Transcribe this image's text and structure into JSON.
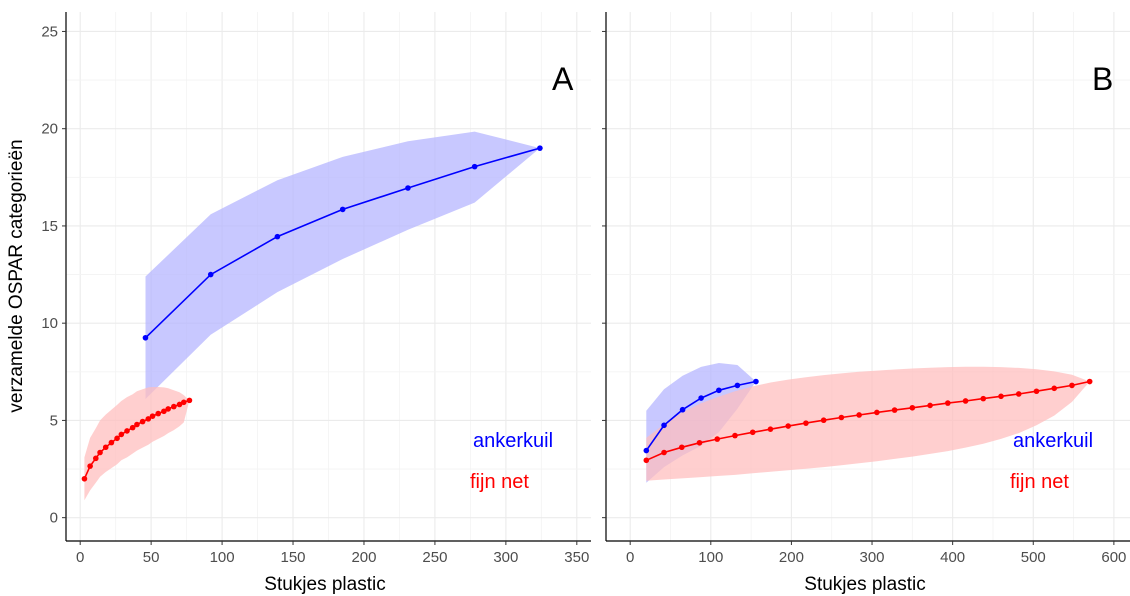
{
  "chart_data": [
    {
      "type": "line",
      "panel_label": "A",
      "xlabel": "Stukjes plastic",
      "ylabel": "verzamelde OSPAR categorieën",
      "xlim": [
        -10,
        360
      ],
      "ylim": [
        -1.2,
        26
      ],
      "x_ticks": [
        0,
        50,
        100,
        150,
        200,
        250,
        300,
        350
      ],
      "y_ticks": [
        0,
        5,
        10,
        15,
        20,
        25
      ],
      "grid": true,
      "legend_placement": "bottom-right",
      "series": [
        {
          "name": "ankerkuil",
          "color": "#0000ff",
          "band_color": "#b3b3ff",
          "x": [
            46,
            92,
            139,
            185,
            231,
            278,
            324
          ],
          "y": [
            9.25,
            12.5,
            14.45,
            15.85,
            16.95,
            18.05,
            19.0
          ],
          "lower": [
            6.1,
            9.4,
            11.6,
            13.3,
            14.8,
            16.2,
            19.0
          ],
          "upper": [
            12.4,
            15.6,
            17.35,
            18.55,
            19.35,
            19.85,
            19.0
          ]
        },
        {
          "name": "fijn net",
          "color": "#ff0000",
          "band_color": "#ffbdbd",
          "x": [
            3,
            7,
            11,
            14,
            18,
            22,
            26,
            29,
            33,
            37,
            40,
            44,
            48,
            51,
            55,
            59,
            62,
            66,
            70,
            73,
            77
          ],
          "y": [
            2.0,
            2.65,
            3.05,
            3.35,
            3.62,
            3.86,
            4.08,
            4.28,
            4.46,
            4.63,
            4.79,
            4.94,
            5.08,
            5.22,
            5.35,
            5.47,
            5.59,
            5.71,
            5.82,
            5.93,
            6.03
          ],
          "lower": [
            0.9,
            1.4,
            1.8,
            2.1,
            2.35,
            2.55,
            2.75,
            2.95,
            3.1,
            3.3,
            3.45,
            3.6,
            3.75,
            3.9,
            4.05,
            4.2,
            4.35,
            4.5,
            4.7,
            4.9,
            6.03
          ],
          "upper": [
            3.1,
            4.1,
            4.6,
            5.0,
            5.3,
            5.55,
            5.8,
            6.0,
            6.2,
            6.35,
            6.5,
            6.6,
            6.7,
            6.72,
            6.72,
            6.7,
            6.65,
            6.55,
            6.45,
            6.3,
            6.03
          ]
        }
      ]
    },
    {
      "type": "line",
      "panel_label": "B",
      "xlabel": "Stukjes plastic",
      "xlim": [
        -30,
        620
      ],
      "ylim": [
        -1.2,
        26
      ],
      "x_ticks": [
        0,
        100,
        200,
        300,
        400,
        500,
        600
      ],
      "y_ticks": [
        0,
        5,
        10,
        15,
        20,
        25
      ],
      "grid": true,
      "legend_placement": "bottom-right",
      "series": [
        {
          "name": "ankerkuil",
          "color": "#0000ff",
          "band_color": "#b3b3ff",
          "x": [
            20,
            42,
            65,
            88,
            110,
            133,
            156
          ],
          "y": [
            3.45,
            4.75,
            5.55,
            6.15,
            6.55,
            6.8,
            7.0
          ],
          "lower": [
            1.8,
            2.6,
            3.2,
            3.7,
            4.4,
            5.6,
            7.0
          ],
          "upper": [
            5.5,
            6.6,
            7.3,
            7.75,
            7.95,
            7.85,
            7.0
          ]
        },
        {
          "name": "fijn net",
          "color": "#ff0000",
          "band_color": "#ffbdbd",
          "x": [
            20,
            42,
            64,
            86,
            108,
            130,
            152,
            174,
            196,
            218,
            240,
            262,
            284,
            306,
            328,
            350,
            372,
            394,
            416,
            438,
            460,
            482,
            504,
            526,
            548,
            570
          ],
          "y": [
            2.95,
            3.35,
            3.62,
            3.85,
            4.04,
            4.22,
            4.39,
            4.55,
            4.71,
            4.86,
            5.01,
            5.15,
            5.28,
            5.41,
            5.53,
            5.65,
            5.77,
            5.89,
            6.0,
            6.12,
            6.24,
            6.36,
            6.5,
            6.65,
            6.8,
            7.0
          ],
          "lower": [
            1.9,
            1.96,
            2.02,
            2.08,
            2.14,
            2.2,
            2.28,
            2.36,
            2.44,
            2.52,
            2.6,
            2.7,
            2.8,
            2.9,
            3.02,
            3.14,
            3.28,
            3.42,
            3.6,
            3.8,
            4.05,
            4.35,
            4.75,
            5.25,
            5.95,
            7.0
          ],
          "upper": [
            4.1,
            4.8,
            5.4,
            5.85,
            6.2,
            6.5,
            6.75,
            6.95,
            7.1,
            7.22,
            7.33,
            7.42,
            7.5,
            7.56,
            7.62,
            7.67,
            7.71,
            7.74,
            7.76,
            7.76,
            7.74,
            7.7,
            7.63,
            7.52,
            7.35,
            7.0
          ]
        }
      ]
    }
  ]
}
